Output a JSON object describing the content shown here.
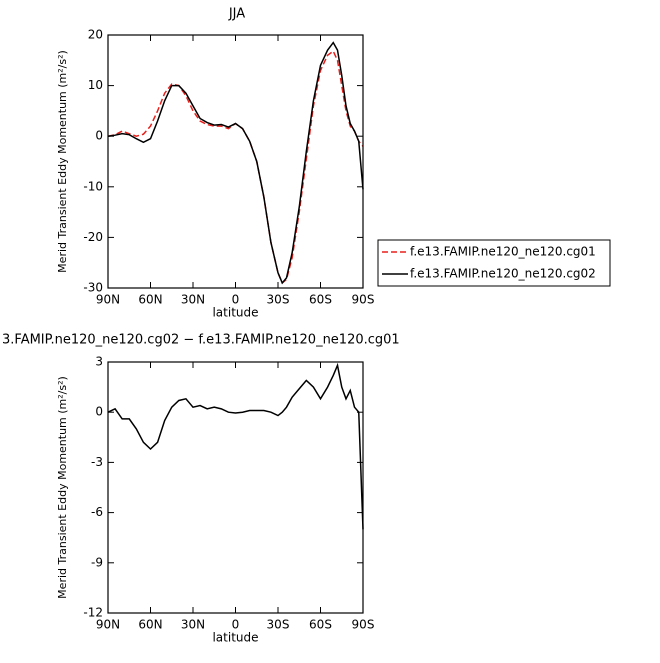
{
  "chart_data": [
    {
      "type": "line",
      "title": "JJA",
      "xlabel": "latitude",
      "ylabel": "Merid Transient Eddy Momentum (m²/s²)",
      "x": [
        90,
        85,
        80,
        75,
        70,
        65,
        60,
        55,
        50,
        45,
        40,
        35,
        30,
        25,
        20,
        15,
        10,
        5,
        0,
        -5,
        -10,
        -15,
        -20,
        -25,
        -30,
        -33,
        -36,
        -40,
        -45,
        -50,
        -55,
        -60,
        -65,
        -69,
        -72,
        -75,
        -78,
        -81,
        -84,
        -87,
        -90
      ],
      "series": [
        {
          "name": "f.e13.FAMIP.ne120_ne120.cg01",
          "color": "#e8201c",
          "line_style": "dashed",
          "values": [
            0,
            0.3,
            1,
            0.5,
            0,
            0.4,
            2,
            5,
            8.5,
            10.3,
            10,
            8,
            5,
            3,
            2.3,
            2,
            2,
            1.5,
            2.5,
            1.5,
            -1,
            -5,
            -12,
            -21,
            -27,
            -29,
            -28.3,
            -24,
            -15,
            -4.5,
            6,
            13,
            16,
            16.8,
            15,
            10,
            5,
            2,
            1,
            -1,
            -2
          ]
        },
        {
          "name": "f.e13.FAMIP.ne120_ne120.cg02",
          "color": "#000000",
          "line_style": "solid",
          "values": [
            0,
            0.2,
            0.5,
            0.3,
            -0.5,
            -1.2,
            -0.5,
            3,
            7,
            10,
            10,
            8.5,
            6,
            3.5,
            2.7,
            2.2,
            2.3,
            1.8,
            2.5,
            1.5,
            -1,
            -5,
            -12,
            -21,
            -27,
            -29,
            -28,
            -23,
            -14,
            -3,
            7,
            14,
            17,
            18.5,
            17,
            12,
            6,
            2.5,
            1,
            -1,
            -10.5
          ]
        }
      ],
      "xlim": [
        90,
        -90
      ],
      "xticks": [
        {
          "value": 90,
          "label": "90N"
        },
        {
          "value": 60,
          "label": "60N"
        },
        {
          "value": 30,
          "label": "30N"
        },
        0,
        {
          "value": -30,
          "label": "30S"
        },
        {
          "value": -60,
          "label": "60S"
        },
        {
          "value": -90,
          "label": "90S"
        }
      ],
      "ylim": [
        -30,
        20
      ],
      "yticks": [
        -30,
        -20,
        -10,
        0,
        10,
        20
      ],
      "legend": "outside right"
    },
    {
      "type": "line",
      "title": "3.FAMIP.ne120_ne120.cg02 − f.e13.FAMIP.ne120_ne120.cg01",
      "xlabel": "latitude",
      "ylabel": "Merid Transient Eddy Momentum (m²/s²)",
      "x": [
        90,
        85,
        80,
        75,
        70,
        65,
        60,
        55,
        50,
        45,
        40,
        35,
        30,
        25,
        20,
        15,
        10,
        5,
        0,
        -5,
        -10,
        -15,
        -20,
        -25,
        -30,
        -33,
        -36,
        -40,
        -45,
        -50,
        -55,
        -60,
        -65,
        -69,
        -72,
        -75,
        -78,
        -81,
        -84,
        -87,
        -90
      ],
      "series": [
        {
          "color": "#000000",
          "line_style": "solid",
          "values": [
            0,
            0.2,
            -0.4,
            -0.4,
            -1,
            -1.8,
            -2.2,
            -1.8,
            -0.5,
            0.3,
            0.7,
            0.8,
            0.3,
            0.4,
            0.2,
            0.3,
            0.2,
            0,
            -0.05,
            0,
            0.1,
            0.1,
            0.1,
            0,
            -0.2,
            0,
            0.3,
            0.9,
            1.4,
            1.9,
            1.5,
            0.8,
            1.5,
            2.2,
            2.8,
            1.5,
            0.8,
            1.3,
            0.3,
            0,
            -7
          ]
        }
      ],
      "xlim": [
        90,
        -90
      ],
      "xticks": [
        {
          "value": 90,
          "label": "90N"
        },
        {
          "value": 60,
          "label": "60N"
        },
        {
          "value": 30,
          "label": "30N"
        },
        0,
        {
          "value": -30,
          "label": "30S"
        },
        {
          "value": -60,
          "label": "60S"
        },
        {
          "value": -90,
          "label": "90S"
        }
      ],
      "ylim": [
        -12,
        3
      ],
      "yticks": [
        -12,
        -9,
        -6,
        -3,
        0,
        3
      ]
    }
  ]
}
